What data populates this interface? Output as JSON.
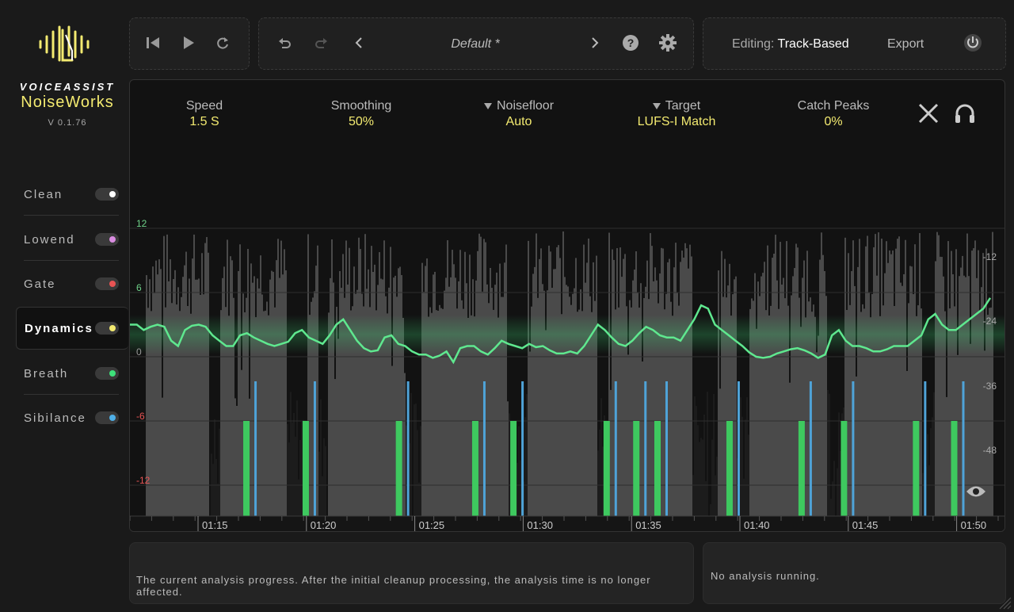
{
  "app": {
    "brand": "VOICEASSIST",
    "product": "NoiseWorks",
    "version": "V 0.1.76"
  },
  "modules": [
    {
      "label": "Clean",
      "dot": "#ffffff"
    },
    {
      "label": "Lowend",
      "dot": "#d98ce0"
    },
    {
      "label": "Gate",
      "dot": "#e85454"
    },
    {
      "label": "Dynamics",
      "dot": "#f3ea70"
    },
    {
      "label": "Breath",
      "dot": "#3ee07a"
    },
    {
      "label": "Sibilance",
      "dot": "#4fb0e8"
    }
  ],
  "active_module": "Dynamics",
  "toolbar": {
    "icons": [
      "skip-start-icon",
      "play-icon",
      "loop-icon",
      "undo-icon",
      "redo-icon",
      "chevron-left-icon",
      "chevron-right-icon",
      "help-icon",
      "gear-icon",
      "power-icon"
    ],
    "preset": "Default *",
    "editing_label": "Editing:",
    "editing_value": "Track-Based",
    "export_label": "Export"
  },
  "params": [
    {
      "label": "Speed",
      "value": "1.5 S",
      "dropdown": false
    },
    {
      "label": "Smoothing",
      "value": "50%",
      "dropdown": false
    },
    {
      "label": "Noisefloor",
      "value": "Auto",
      "dropdown": true
    },
    {
      "label": "Target",
      "value": "LUFS-I Match",
      "dropdown": true
    },
    {
      "label": "Catch Peaks",
      "value": "0%",
      "dropdown": false
    }
  ],
  "chart_data": {
    "type": "line",
    "left_axis": [
      "12",
      "6",
      "0",
      "-6",
      "-12"
    ],
    "left_axis_colors": [
      "#6fd38a",
      "#6fd38a",
      "#999999",
      "#e85454",
      "#e85454"
    ],
    "right_axis": [
      "-12",
      "-24",
      "-36",
      "-48"
    ],
    "time_ticks": [
      "01:15",
      "01:20",
      "01:25",
      "01:30",
      "01:35",
      "01:40",
      "01:45",
      "01:50"
    ],
    "gain_curve_db": [
      3.0,
      3.0,
      2.5,
      2.8,
      3.0,
      2.8,
      1.5,
      1.0,
      2.5,
      2.9,
      3.0,
      2.8,
      2.0,
      1.5,
      1.0,
      1.0,
      2.0,
      2.2,
      1.8,
      1.5,
      1.2,
      1.0,
      1.2,
      1.4,
      2.2,
      2.5,
      1.8,
      1.5,
      1.2,
      2.0,
      3.0,
      3.5,
      2.5,
      1.5,
      0.8,
      0.5,
      0.6,
      1.8,
      2.0,
      1.2,
      1.0,
      0.5,
      0.2,
      0.2,
      -0.1,
      0.1,
      0.5,
      -0.5,
      0.8,
      1.0,
      1.0,
      0.5,
      0.2,
      0.8,
      1.5,
      1.2,
      1.0,
      0.8,
      1.2,
      0.9,
      1.0,
      0.6,
      0.3,
      0.3,
      0.5,
      0.3,
      1.0,
      2.0,
      3.0,
      2.5,
      1.8,
      1.2,
      1.0,
      1.5,
      2.2,
      2.8,
      2.5,
      2.0,
      1.8,
      1.8,
      1.5,
      2.5,
      3.5,
      4.8,
      4.5,
      3.0,
      2.5,
      2.0,
      1.5,
      1.0,
      0.4,
      0.0,
      -0.1,
      0.0,
      0.3,
      0.5,
      0.7,
      0.8,
      0.6,
      0.3,
      -0.1,
      0.2,
      2.0,
      2.5,
      1.5,
      1.0,
      1.0,
      0.8,
      0.5,
      0.5,
      0.7,
      1.0,
      1.0,
      1.0,
      1.5,
      2.0,
      3.5,
      4.0,
      3.0,
      2.5,
      2.5,
      3.0,
      3.5,
      4.0,
      4.5,
      5.5
    ],
    "gate_markers_pct": [
      11.5,
      18.5,
      29.5,
      38.5,
      43.0,
      54.0,
      57.5,
      60.0,
      68.5,
      77.0,
      82.0,
      90.5,
      95.0
    ]
  },
  "overlay_icons": [
    "close-icon",
    "headphones-icon",
    "eye-icon"
  ],
  "status": {
    "left": "The current analysis progress. After the initial cleanup processing, the analysis time is no longer affected.",
    "right": "No analysis running."
  }
}
